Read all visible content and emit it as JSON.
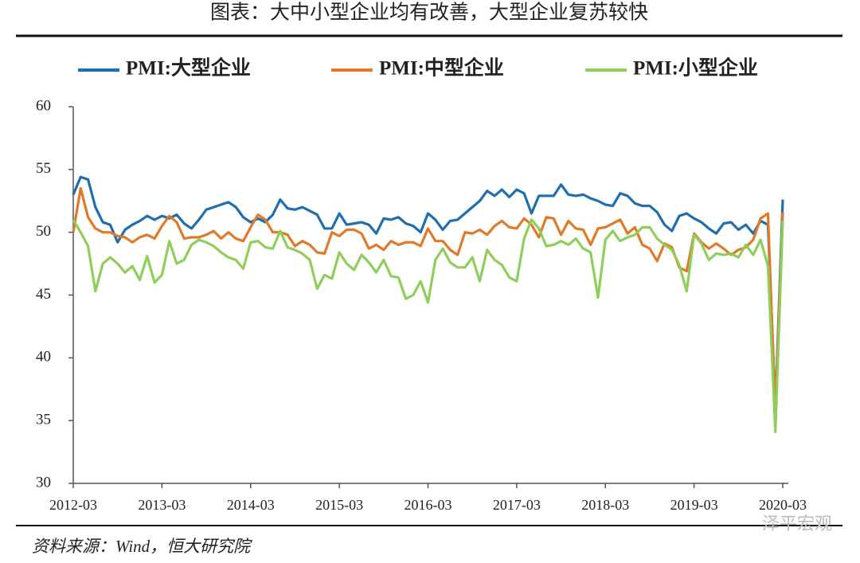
{
  "chart_data": {
    "type": "line",
    "title": "图表：大中小型企业均有改善，大型企业复苏较快",
    "source": "资料来源：Wind，恒大研究院",
    "watermark": "泽平宏观",
    "legend": "top",
    "categories": [
      "2012-03",
      null,
      null,
      null,
      null,
      null,
      null,
      null,
      null,
      null,
      null,
      null,
      "2013-03",
      null,
      null,
      null,
      null,
      null,
      null,
      null,
      null,
      null,
      null,
      null,
      "2014-03",
      null,
      null,
      null,
      null,
      null,
      null,
      null,
      null,
      null,
      null,
      null,
      "2015-03",
      null,
      null,
      null,
      null,
      null,
      null,
      null,
      null,
      null,
      null,
      null,
      "2016-03",
      null,
      null,
      null,
      null,
      null,
      null,
      null,
      null,
      null,
      null,
      null,
      "2017-03",
      null,
      null,
      null,
      null,
      null,
      null,
      null,
      null,
      null,
      null,
      null,
      "2018-03",
      null,
      null,
      null,
      null,
      null,
      null,
      null,
      null,
      null,
      null,
      null,
      "2019-03",
      null,
      null,
      null,
      null,
      null,
      null,
      null,
      null,
      null,
      null,
      null,
      "2020-03"
    ],
    "ylim": [
      30,
      60
    ],
    "yticks": [
      30,
      35,
      40,
      45,
      50,
      55,
      60
    ],
    "series": [
      {
        "name": "PMI:大型企业",
        "color": "#1f6fb0",
        "values": [
          53.0,
          54.4,
          54.2,
          52.0,
          50.8,
          50.6,
          49.2,
          50.2,
          50.6,
          50.9,
          51.3,
          51.0,
          51.3,
          51.1,
          51.4,
          50.7,
          50.3,
          51.0,
          51.8,
          52.0,
          52.2,
          52.4,
          52.0,
          51.2,
          50.8,
          51.1,
          50.8,
          51.4,
          52.6,
          51.9,
          51.8,
          52.0,
          51.7,
          51.4,
          50.3,
          50.3,
          51.5,
          50.6,
          50.7,
          50.8,
          50.6,
          49.9,
          51.1,
          51.0,
          51.2,
          50.7,
          50.5,
          50.0,
          51.5,
          51.0,
          50.2,
          50.9,
          51.0,
          51.5,
          52.0,
          52.5,
          53.3,
          52.9,
          53.4,
          52.8,
          53.4,
          53.1,
          51.5,
          52.9,
          52.9,
          52.9,
          53.8,
          53.0,
          52.9,
          53.0,
          52.7,
          52.5,
          52.2,
          52.1,
          53.1,
          52.9,
          52.3,
          52.1,
          52.1,
          51.6,
          50.6,
          50.1,
          51.3,
          51.5,
          51.1,
          50.8,
          50.3,
          49.9,
          50.7,
          50.8,
          50.2,
          50.6,
          49.9,
          50.9,
          50.6,
          36.0,
          52.6
        ]
      },
      {
        "name": "PMI:中型企业",
        "color": "#e07a28",
        "values": [
          50.0,
          53.5,
          51.2,
          50.3,
          50.0,
          50.0,
          49.7,
          49.6,
          49.2,
          49.6,
          49.8,
          49.5,
          50.5,
          51.3,
          50.8,
          49.5,
          49.6,
          49.6,
          49.8,
          50.1,
          49.5,
          50.0,
          49.5,
          49.3,
          50.4,
          51.4,
          51.0,
          50.0,
          50.0,
          49.8,
          48.9,
          49.3,
          49.0,
          48.4,
          48.3,
          50.0,
          49.7,
          50.2,
          50.2,
          49.9,
          48.7,
          49.0,
          48.6,
          49.3,
          49.0,
          49.2,
          49.2,
          48.9,
          50.3,
          49.3,
          49.3,
          48.6,
          48.2,
          50.0,
          49.9,
          50.2,
          49.8,
          50.5,
          50.9,
          50.4,
          50.3,
          51.1,
          50.6,
          49.6,
          51.2,
          51.1,
          49.8,
          50.9,
          50.3,
          50.2,
          49.0,
          50.3,
          50.4,
          50.7,
          51.0,
          49.9,
          50.4,
          49.0,
          48.7,
          47.7,
          49.1,
          48.8,
          47.2,
          46.9,
          49.9,
          49.2,
          48.7,
          49.1,
          48.7,
          48.2,
          48.6,
          48.8,
          49.4,
          51.1,
          51.5,
          35.5,
          51.6
        ]
      },
      {
        "name": "PMI:小型企业",
        "color": "#8fce5a",
        "values": [
          51.0,
          50.0,
          48.9,
          45.3,
          47.5,
          48.0,
          47.5,
          46.8,
          47.3,
          46.2,
          48.1,
          46.0,
          46.6,
          49.3,
          47.5,
          47.8,
          49.0,
          49.4,
          49.2,
          48.9,
          48.4,
          48.0,
          47.8,
          47.1,
          49.2,
          49.3,
          48.8,
          48.7,
          50.1,
          48.8,
          48.6,
          48.3,
          47.8,
          45.5,
          46.6,
          46.3,
          48.4,
          47.5,
          47.0,
          48.2,
          47.6,
          46.8,
          47.8,
          46.5,
          46.4,
          44.7,
          45.0,
          46.1,
          44.4,
          47.8,
          48.7,
          47.6,
          47.2,
          47.2,
          48.0,
          46.1,
          48.6,
          47.8,
          47.4,
          46.4,
          46.1,
          49.5,
          51.0,
          50.3,
          48.9,
          49.0,
          49.3,
          49.0,
          49.5,
          48.7,
          48.4,
          44.8,
          49.4,
          50.1,
          49.3,
          49.6,
          49.8,
          50.4,
          50.4,
          49.5,
          49.0,
          48.6,
          47.4,
          45.3,
          49.8,
          49.1,
          47.8,
          48.3,
          48.2,
          48.3,
          48.0,
          49.0,
          48.2,
          49.4,
          47.3,
          34.1,
          50.9
        ]
      }
    ]
  }
}
